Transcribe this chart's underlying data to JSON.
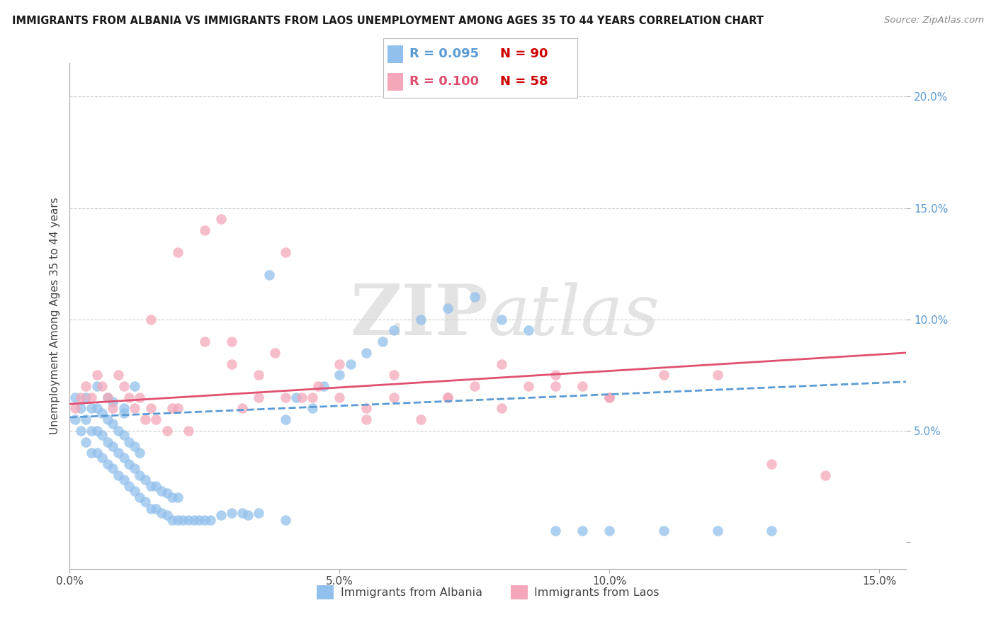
{
  "title": "IMMIGRANTS FROM ALBANIA VS IMMIGRANTS FROM LAOS UNEMPLOYMENT AMONG AGES 35 TO 44 YEARS CORRELATION CHART",
  "source": "Source: ZipAtlas.com",
  "ylabel": "Unemployment Among Ages 35 to 44 years",
  "xmin": 0.0,
  "xmax": 0.155,
  "ymin": -0.012,
  "ymax": 0.215,
  "yticks": [
    0.0,
    0.05,
    0.1,
    0.15,
    0.2
  ],
  "ytick_labels": [
    "",
    "5.0%",
    "10.0%",
    "15.0%",
    "20.0%"
  ],
  "xticks": [
    0.0,
    0.05,
    0.1,
    0.15
  ],
  "xtick_labels": [
    "0.0%",
    "5.0%",
    "10.0%",
    "15.0%"
  ],
  "legend_labels": [
    "Immigrants from Albania",
    "Immigrants from Laos"
  ],
  "albania_R": "R = 0.095",
  "albania_N": "N = 90",
  "laos_R": "R = 0.100",
  "laos_N": "N = 58",
  "albania_color": "#92C0EC",
  "laos_color": "#F4A7B9",
  "albania_trend_color": "#5B9BD5",
  "laos_trend_color": "#E05070",
  "watermark_zip": "ZIP",
  "watermark_atlas": "atlas",
  "n_albania": 90,
  "n_laos": 58,
  "albania_x": [
    0.001,
    0.001,
    0.002,
    0.002,
    0.003,
    0.003,
    0.003,
    0.004,
    0.004,
    0.004,
    0.005,
    0.005,
    0.005,
    0.005,
    0.006,
    0.006,
    0.006,
    0.007,
    0.007,
    0.007,
    0.007,
    0.008,
    0.008,
    0.008,
    0.008,
    0.009,
    0.009,
    0.009,
    0.01,
    0.01,
    0.01,
    0.01,
    0.011,
    0.011,
    0.011,
    0.012,
    0.012,
    0.012,
    0.013,
    0.013,
    0.013,
    0.014,
    0.014,
    0.015,
    0.015,
    0.016,
    0.016,
    0.017,
    0.017,
    0.018,
    0.018,
    0.019,
    0.019,
    0.02,
    0.02,
    0.021,
    0.022,
    0.023,
    0.024,
    0.025,
    0.026,
    0.028,
    0.03,
    0.032,
    0.033,
    0.035,
    0.037,
    0.04,
    0.04,
    0.042,
    0.045,
    0.047,
    0.05,
    0.052,
    0.055,
    0.058,
    0.06,
    0.065,
    0.07,
    0.075,
    0.08,
    0.085,
    0.09,
    0.095,
    0.1,
    0.11,
    0.12,
    0.13,
    0.01,
    0.012
  ],
  "albania_y": [
    0.055,
    0.065,
    0.05,
    0.06,
    0.045,
    0.055,
    0.065,
    0.04,
    0.05,
    0.06,
    0.04,
    0.05,
    0.06,
    0.07,
    0.038,
    0.048,
    0.058,
    0.035,
    0.045,
    0.055,
    0.065,
    0.033,
    0.043,
    0.053,
    0.063,
    0.03,
    0.04,
    0.05,
    0.028,
    0.038,
    0.048,
    0.058,
    0.025,
    0.035,
    0.045,
    0.023,
    0.033,
    0.043,
    0.02,
    0.03,
    0.04,
    0.018,
    0.028,
    0.015,
    0.025,
    0.015,
    0.025,
    0.013,
    0.023,
    0.012,
    0.022,
    0.01,
    0.02,
    0.01,
    0.02,
    0.01,
    0.01,
    0.01,
    0.01,
    0.01,
    0.01,
    0.012,
    0.013,
    0.013,
    0.012,
    0.013,
    0.12,
    0.01,
    0.055,
    0.065,
    0.06,
    0.07,
    0.075,
    0.08,
    0.085,
    0.09,
    0.095,
    0.1,
    0.105,
    0.11,
    0.1,
    0.095,
    0.005,
    0.005,
    0.005,
    0.005,
    0.005,
    0.005,
    0.06,
    0.07
  ],
  "laos_x": [
    0.001,
    0.002,
    0.003,
    0.004,
    0.005,
    0.006,
    0.007,
    0.008,
    0.009,
    0.01,
    0.011,
    0.012,
    0.013,
    0.014,
    0.015,
    0.016,
    0.018,
    0.019,
    0.02,
    0.022,
    0.025,
    0.028,
    0.03,
    0.032,
    0.035,
    0.038,
    0.04,
    0.043,
    0.046,
    0.05,
    0.055,
    0.06,
    0.065,
    0.07,
    0.075,
    0.08,
    0.085,
    0.09,
    0.095,
    0.1,
    0.025,
    0.03,
    0.035,
    0.04,
    0.045,
    0.05,
    0.02,
    0.015,
    0.055,
    0.06,
    0.07,
    0.08,
    0.09,
    0.1,
    0.11,
    0.12,
    0.13,
    0.14
  ],
  "laos_y": [
    0.06,
    0.065,
    0.07,
    0.065,
    0.075,
    0.07,
    0.065,
    0.06,
    0.075,
    0.07,
    0.065,
    0.06,
    0.065,
    0.055,
    0.06,
    0.055,
    0.05,
    0.06,
    0.06,
    0.05,
    0.09,
    0.145,
    0.08,
    0.06,
    0.075,
    0.085,
    0.065,
    0.065,
    0.07,
    0.065,
    0.06,
    0.065,
    0.055,
    0.065,
    0.07,
    0.06,
    0.07,
    0.07,
    0.07,
    0.065,
    0.14,
    0.09,
    0.065,
    0.13,
    0.065,
    0.08,
    0.13,
    0.1,
    0.055,
    0.075,
    0.065,
    0.08,
    0.075,
    0.065,
    0.075,
    0.075,
    0.035,
    0.03
  ]
}
